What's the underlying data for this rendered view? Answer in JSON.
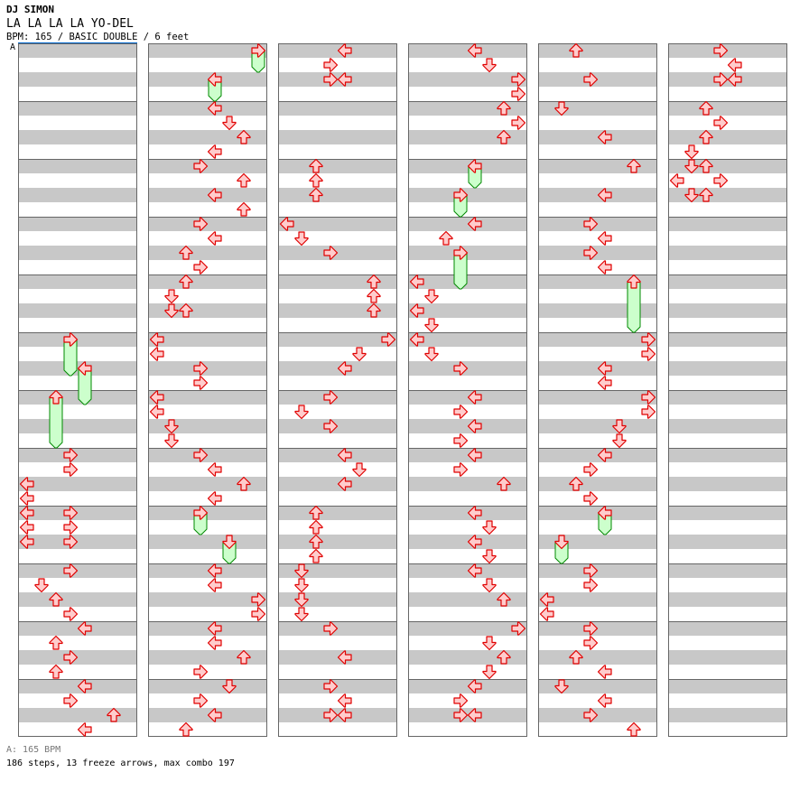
{
  "header": {
    "artist": "DJ SIMON",
    "title": "LA LA LA LA YO-DEL",
    "info": "BPM: 165 / BASIC DOUBLE / 6 feet",
    "bpm_marker": "A"
  },
  "footer": {
    "bpm_legend": "A: 165 BPM",
    "stats": "186 steps, 13 freeze arrows, max combo 197"
  },
  "colors": {
    "arrow_fill": "#ffcccc",
    "arrow_stroke": "#e00000",
    "freeze_fill": "#ccffcc",
    "freeze_stroke": "#008800",
    "stripe": "#c8c8c8",
    "bpm_line": "#0066cc"
  },
  "chart_data": {
    "type": "step-chart",
    "mode": "BASIC DOUBLE",
    "bpm": 165,
    "measures": 72,
    "beats_per_measure": 4,
    "lanes": [
      "left",
      "down",
      "up",
      "right",
      "left",
      "down",
      "up",
      "right"
    ],
    "notes_format": "[beat, lane, freeze_length_beats]",
    "notes": [
      [
        20,
        3,
        2
      ],
      [
        22,
        4,
        2
      ],
      [
        24,
        2,
        3
      ],
      [
        28,
        3
      ],
      [
        29,
        3
      ],
      [
        30,
        0
      ],
      [
        31,
        0
      ],
      [
        32,
        0
      ],
      [
        32,
        3
      ],
      [
        33,
        0
      ],
      [
        33,
        3
      ],
      [
        34,
        0
      ],
      [
        34,
        3
      ],
      [
        36,
        3
      ],
      [
        37,
        1
      ],
      [
        38,
        2
      ],
      [
        39,
        3
      ],
      [
        40,
        4
      ],
      [
        41,
        2
      ],
      [
        42,
        3
      ],
      [
        43,
        2
      ],
      [
        44,
        4
      ],
      [
        45,
        3
      ],
      [
        46,
        6
      ],
      [
        47,
        4
      ],
      [
        48,
        7,
        1
      ],
      [
        50,
        4,
        1
      ],
      [
        52,
        4
      ],
      [
        53,
        5
      ],
      [
        54,
        6
      ],
      [
        55,
        4
      ],
      [
        56,
        3
      ],
      [
        57,
        6
      ],
      [
        58,
        4
      ],
      [
        59,
        6
      ],
      [
        60,
        3
      ],
      [
        61,
        4
      ],
      [
        62,
        2
      ],
      [
        63,
        3
      ],
      [
        64,
        2
      ],
      [
        65,
        1
      ],
      [
        66,
        1
      ],
      [
        66,
        2
      ],
      [
        68,
        0
      ],
      [
        69,
        0
      ],
      [
        70,
        3
      ],
      [
        71,
        3
      ],
      [
        72,
        0
      ],
      [
        73,
        0
      ],
      [
        74,
        1
      ],
      [
        75,
        1
      ],
      [
        76,
        3
      ],
      [
        77,
        4
      ],
      [
        78,
        6
      ],
      [
        79,
        4
      ],
      [
        80,
        3,
        1
      ],
      [
        82,
        5,
        1
      ],
      [
        84,
        4
      ],
      [
        85,
        4
      ],
      [
        86,
        7
      ],
      [
        87,
        7
      ],
      [
        88,
        4
      ],
      [
        89,
        4
      ],
      [
        90,
        6
      ],
      [
        91,
        3
      ],
      [
        92,
        5
      ],
      [
        93,
        3
      ],
      [
        94,
        4
      ],
      [
        95,
        2
      ],
      [
        96,
        4
      ],
      [
        97,
        3
      ],
      [
        98,
        3
      ],
      [
        98,
        4
      ],
      [
        104,
        2
      ],
      [
        105,
        2
      ],
      [
        106,
        2
      ],
      [
        108,
        0
      ],
      [
        109,
        1
      ],
      [
        110,
        3
      ],
      [
        112,
        6
      ],
      [
        113,
        6
      ],
      [
        114,
        6
      ],
      [
        116,
        7
      ],
      [
        117,
        5
      ],
      [
        118,
        4
      ],
      [
        120,
        3
      ],
      [
        121,
        1
      ],
      [
        122,
        3
      ],
      [
        124,
        4
      ],
      [
        125,
        5
      ],
      [
        126,
        4
      ],
      [
        128,
        2
      ],
      [
        129,
        2
      ],
      [
        130,
        2
      ],
      [
        131,
        2
      ],
      [
        132,
        1
      ],
      [
        133,
        1
      ],
      [
        134,
        1
      ],
      [
        135,
        1
      ],
      [
        136,
        3
      ],
      [
        138,
        4
      ],
      [
        140,
        3
      ],
      [
        141,
        4
      ],
      [
        142,
        3
      ],
      [
        142,
        4
      ],
      [
        144,
        4
      ],
      [
        145,
        5
      ],
      [
        146,
        7
      ],
      [
        147,
        7
      ],
      [
        148,
        6
      ],
      [
        149,
        7
      ],
      [
        150,
        6
      ],
      [
        152,
        4,
        1
      ],
      [
        154,
        3,
        1
      ],
      [
        156,
        4
      ],
      [
        157,
        2
      ],
      [
        158,
        3,
        2
      ],
      [
        160,
        0
      ],
      [
        161,
        1
      ],
      [
        162,
        0
      ],
      [
        163,
        1
      ],
      [
        164,
        0
      ],
      [
        165,
        1
      ],
      [
        166,
        3
      ],
      [
        168,
        4
      ],
      [
        169,
        3
      ],
      [
        170,
        4
      ],
      [
        171,
        3
      ],
      [
        172,
        4
      ],
      [
        173,
        3
      ],
      [
        174,
        6
      ],
      [
        176,
        4
      ],
      [
        177,
        5
      ],
      [
        178,
        4
      ],
      [
        179,
        5
      ],
      [
        180,
        4
      ],
      [
        181,
        5
      ],
      [
        182,
        6
      ],
      [
        184,
        7
      ],
      [
        185,
        5
      ],
      [
        186,
        6
      ],
      [
        187,
        5
      ],
      [
        188,
        4
      ],
      [
        189,
        3
      ],
      [
        190,
        3
      ],
      [
        190,
        4
      ],
      [
        192,
        2
      ],
      [
        194,
        3
      ],
      [
        196,
        1
      ],
      [
        198,
        4
      ],
      [
        200,
        6
      ],
      [
        202,
        4
      ],
      [
        204,
        3
      ],
      [
        205,
        4
      ],
      [
        206,
        3
      ],
      [
        207,
        4
      ],
      [
        208,
        6,
        3
      ],
      [
        212,
        7
      ],
      [
        213,
        7
      ],
      [
        214,
        4
      ],
      [
        215,
        4
      ],
      [
        216,
        7
      ],
      [
        217,
        7
      ],
      [
        218,
        5
      ],
      [
        219,
        5
      ],
      [
        220,
        4
      ],
      [
        221,
        3
      ],
      [
        222,
        2
      ],
      [
        223,
        3
      ],
      [
        224,
        4,
        1
      ],
      [
        226,
        1,
        1
      ],
      [
        228,
        3
      ],
      [
        229,
        3
      ],
      [
        230,
        0
      ],
      [
        231,
        0
      ],
      [
        232,
        3
      ],
      [
        233,
        3
      ],
      [
        234,
        2
      ],
      [
        235,
        4
      ],
      [
        236,
        1
      ],
      [
        237,
        4
      ],
      [
        238,
        3
      ],
      [
        239,
        6
      ],
      [
        240,
        3
      ],
      [
        241,
        4
      ],
      [
        242,
        3
      ],
      [
        242,
        4
      ],
      [
        244,
        2
      ],
      [
        245,
        3
      ],
      [
        246,
        2
      ],
      [
        247,
        1
      ],
      [
        248,
        1
      ],
      [
        248,
        2
      ],
      [
        249,
        0
      ],
      [
        249,
        3
      ],
      [
        250,
        1
      ],
      [
        250,
        2
      ]
    ]
  }
}
